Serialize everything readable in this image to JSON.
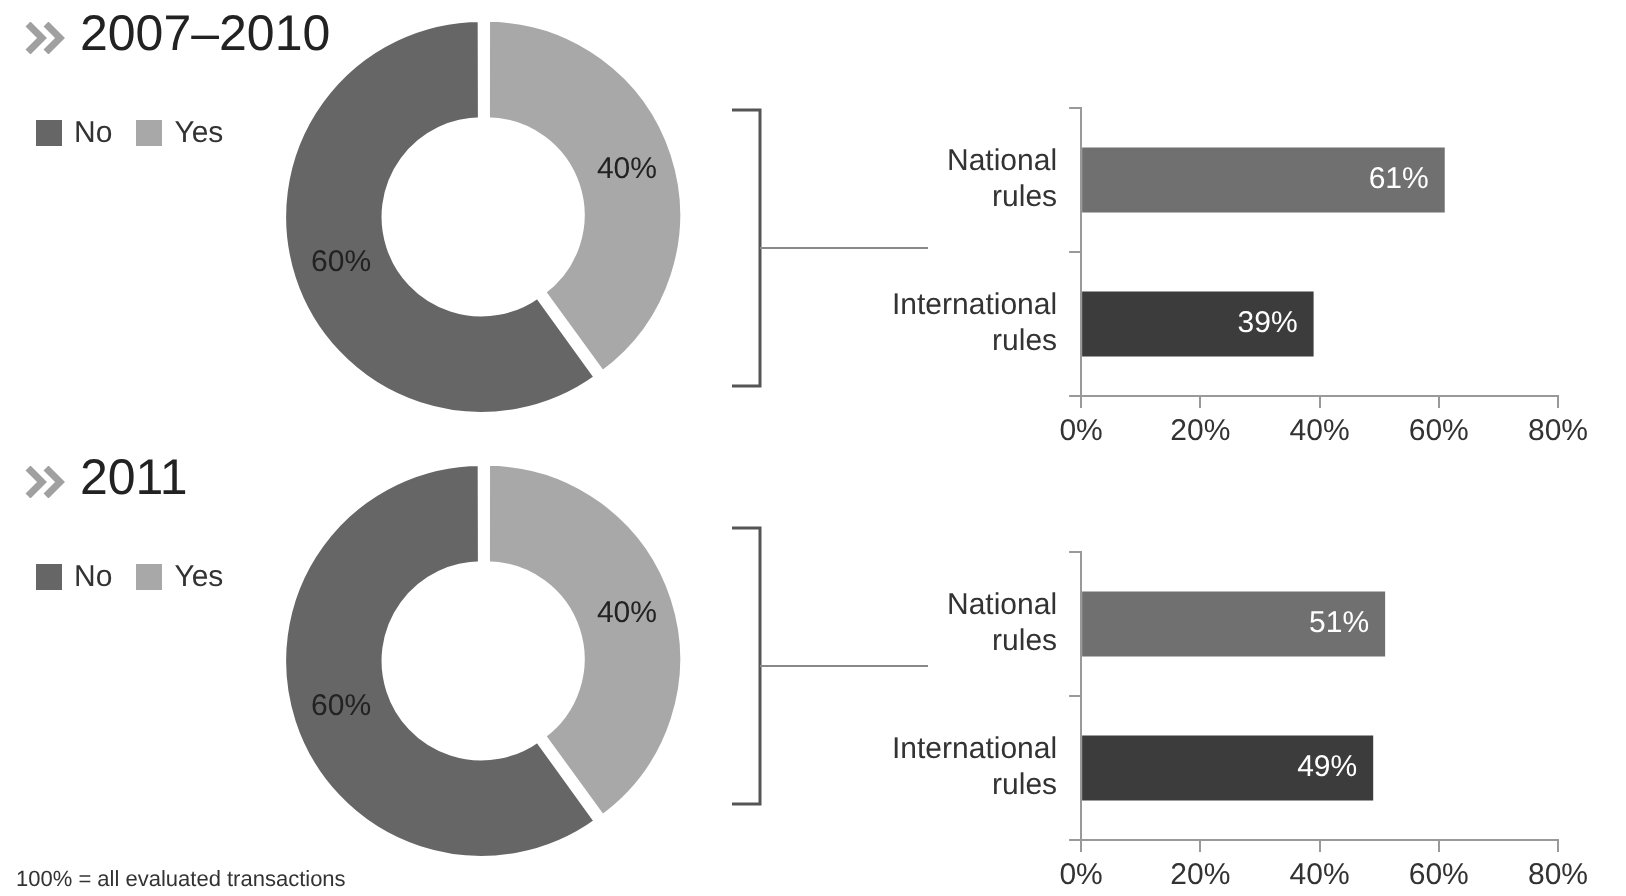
{
  "chart_data": [
    {
      "type": "donut",
      "title": "2007–2010",
      "categories": [
        "No",
        "Yes"
      ],
      "values": [
        60,
        40
      ],
      "colors": [
        "#666666",
        "#a8a8a8"
      ],
      "value_labels": [
        "60%",
        "40%"
      ],
      "legend": "top left"
    },
    {
      "type": "bar",
      "orientation": "horizontal",
      "categories": [
        "National rules",
        "International rules"
      ],
      "values": [
        61,
        39
      ],
      "colors": [
        "#707070",
        "#3c3c3c"
      ],
      "value_labels": [
        "61%",
        "39%"
      ],
      "xlim": [
        0,
        80
      ],
      "xticks": [
        {
          "value": 0,
          "label": "0%"
        },
        {
          "value": 20,
          "label": "20%"
        },
        {
          "value": 40,
          "label": "40%"
        },
        {
          "value": 60,
          "label": "60%"
        },
        {
          "value": 80,
          "label": "80%"
        }
      ],
      "grid": false
    },
    {
      "type": "donut",
      "title": "2011",
      "categories": [
        "No",
        "Yes"
      ],
      "values": [
        60,
        40
      ],
      "colors": [
        "#666666",
        "#a8a8a8"
      ],
      "value_labels": [
        "60%",
        "40%"
      ],
      "legend": "top left",
      "annotations": [
        "100% = all evaluated transactions"
      ]
    },
    {
      "type": "bar",
      "orientation": "horizontal",
      "categories": [
        "National rules",
        "International rules"
      ],
      "values": [
        51,
        49
      ],
      "colors": [
        "#707070",
        "#3c3c3c"
      ],
      "value_labels": [
        "51%",
        "49%"
      ],
      "xlim": [
        0,
        80
      ],
      "xticks": [
        {
          "value": 0,
          "label": "0%"
        },
        {
          "value": 20,
          "label": "20%"
        },
        {
          "value": 40,
          "label": "40%"
        },
        {
          "value": 60,
          "label": "60%"
        },
        {
          "value": 80,
          "label": "80%"
        }
      ],
      "grid": false
    }
  ]
}
